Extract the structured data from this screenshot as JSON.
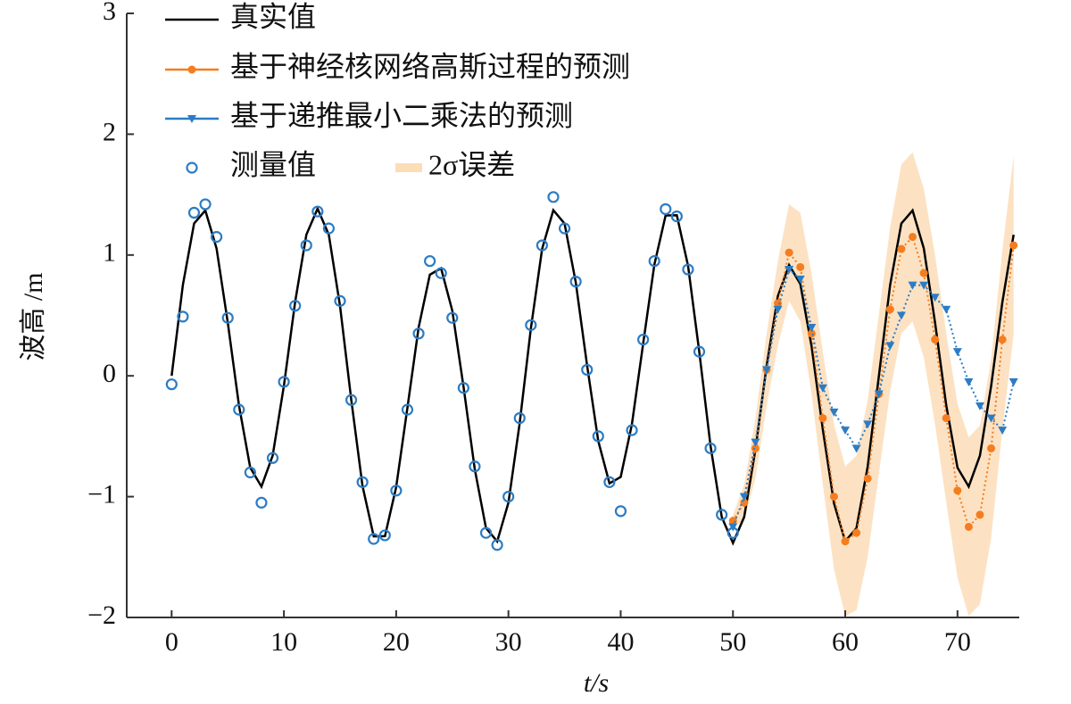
{
  "chart_data": {
    "type": "line",
    "xlabel": "t/s",
    "ylabel": "波高 /m",
    "xlim": [
      -4,
      75.5
    ],
    "ylim": [
      -2,
      3
    ],
    "xticks": [
      0,
      10,
      20,
      30,
      40,
      50,
      60,
      70
    ],
    "yticks": [
      {
        "value": -2,
        "label": "−2"
      },
      {
        "value": -1,
        "label": "−1"
      },
      0,
      1,
      2,
      3
    ],
    "series": [
      {
        "name": "真实值",
        "color": "#000000",
        "linestyle": "solid",
        "marker": "none",
        "x": [
          0,
          1,
          2,
          3,
          4,
          5,
          6,
          7,
          8,
          9,
          10,
          11,
          12,
          13,
          14,
          15,
          16,
          17,
          18,
          19,
          20,
          21,
          22,
          23,
          24,
          25,
          26,
          27,
          28,
          29,
          30,
          31,
          32,
          33,
          34,
          35,
          36,
          37,
          38,
          39,
          40,
          41,
          42,
          43,
          44,
          45,
          46,
          47,
          48,
          49,
          50,
          51,
          52,
          53,
          54,
          55,
          56,
          57,
          58,
          59,
          60,
          61,
          62,
          63,
          64,
          65,
          66,
          67,
          68,
          69,
          70,
          71,
          72,
          73,
          74,
          75
        ],
        "values": [
          0,
          0.752,
          1.261,
          1.369,
          1.055,
          0.441,
          -0.246,
          -0.76,
          -0.917,
          -0.66,
          -0.082,
          0.611,
          1.168,
          1.384,
          1.168,
          0.578,
          -0.198,
          -0.911,
          -1.329,
          -1.327,
          -0.921,
          -0.266,
          0.4,
          0.837,
          0.89,
          0.539,
          -0.09,
          -0.772,
          -1.26,
          -1.371,
          -1.05,
          -0.393,
          0.393,
          1.05,
          1.371,
          1.26,
          0.772,
          0.09,
          -0.539,
          -0.89,
          -0.837,
          -0.4,
          0.266,
          0.921,
          1.327,
          1.329,
          0.911,
          0.198,
          -0.578,
          -1.168,
          -1.384,
          -1.168,
          -0.611,
          0.082,
          0.66,
          0.917,
          0.76,
          0.246,
          -0.441,
          -1.055,
          -1.369,
          -1.261,
          -0.752,
          0,
          0.752,
          1.261,
          1.369,
          1.055,
          0.441,
          -0.246,
          -0.76,
          -0.917,
          -0.66,
          -0.082,
          0.611,
          1.168
        ]
      },
      {
        "name": "基于神经核网络高斯过程的预测",
        "color": "#f57d1f",
        "linestyle": "dotted",
        "marker": "dot",
        "x": [
          50,
          51,
          52,
          53,
          54,
          55,
          56,
          57,
          58,
          59,
          60,
          61,
          62,
          63,
          64,
          65,
          66,
          67,
          68,
          69,
          70,
          71,
          72,
          73,
          74,
          75
        ],
        "values": [
          -1.2,
          -1.05,
          -0.6,
          0.05,
          0.6,
          1.02,
          0.9,
          0.35,
          -0.35,
          -1.0,
          -1.37,
          -1.3,
          -0.85,
          -0.15,
          0.55,
          1.05,
          1.15,
          0.85,
          0.3,
          -0.35,
          -0.95,
          -1.25,
          -1.15,
          -0.6,
          0.3,
          1.08
        ]
      },
      {
        "name": "基于递推最小二乘法的预测",
        "color": "#2c7cc4",
        "linestyle": "dotted",
        "marker": "triangle-down",
        "x": [
          50,
          51,
          52,
          53,
          54,
          55,
          56,
          57,
          58,
          59,
          60,
          61,
          62,
          63,
          64,
          65,
          66,
          67,
          68,
          69,
          70,
          71,
          72,
          73,
          74,
          75
        ],
        "values": [
          -1.25,
          -1.0,
          -0.55,
          0.05,
          0.55,
          0.88,
          0.8,
          0.4,
          -0.1,
          -0.3,
          -0.45,
          -0.6,
          -0.4,
          -0.15,
          0.25,
          0.5,
          0.75,
          0.75,
          0.65,
          0.55,
          0.2,
          -0.05,
          -0.25,
          -0.35,
          -0.45,
          -0.05
        ]
      },
      {
        "name": "测量值",
        "color": "#2c7cc4",
        "linestyle": "none",
        "marker": "open-circle",
        "x": [
          0,
          1,
          2,
          3,
          4,
          5,
          6,
          7,
          8,
          9,
          10,
          11,
          12,
          13,
          14,
          15,
          16,
          17,
          18,
          19,
          20,
          21,
          22,
          23,
          24,
          25,
          26,
          27,
          28,
          29,
          30,
          31,
          32,
          33,
          34,
          35,
          36,
          37,
          38,
          39,
          40,
          41,
          42,
          43,
          44,
          45,
          46,
          47,
          48,
          49,
          50
        ],
        "values": [
          -0.07,
          0.49,
          1.35,
          1.42,
          1.15,
          0.48,
          -0.28,
          -0.8,
          -1.05,
          -0.68,
          -0.05,
          0.58,
          1.08,
          1.36,
          1.22,
          0.62,
          -0.2,
          -0.88,
          -1.35,
          -1.32,
          -0.95,
          -0.28,
          0.35,
          0.95,
          0.85,
          0.48,
          -0.1,
          -0.75,
          -1.3,
          -1.4,
          -1.0,
          -0.35,
          0.42,
          1.08,
          1.48,
          1.22,
          0.78,
          0.05,
          -0.5,
          -0.88,
          -1.12,
          -0.45,
          0.3,
          0.95,
          1.38,
          1.32,
          0.88,
          0.2,
          -0.6,
          -1.15,
          -1.3
        ]
      }
    ],
    "band": {
      "name": "2σ误差",
      "color": "#fbddb8",
      "x": [
        50,
        51,
        52,
        53,
        54,
        55,
        56,
        57,
        58,
        59,
        60,
        61,
        62,
        63,
        64,
        65,
        66,
        67,
        68,
        69,
        70,
        71,
        72,
        73,
        74,
        75
      ],
      "upper": [
        -1.15,
        -0.9,
        -0.35,
        0.35,
        0.95,
        1.42,
        1.35,
        0.85,
        0.2,
        -0.4,
        -0.75,
        -0.66,
        -0.2,
        0.51,
        1.23,
        1.75,
        1.85,
        1.55,
        1.0,
        0.35,
        -0.23,
        -0.51,
        -0.41,
        0.14,
        1.04,
        1.82
      ],
      "lower": [
        -1.25,
        -1.2,
        -0.85,
        -0.25,
        0.25,
        0.62,
        0.45,
        -0.15,
        -0.9,
        -1.6,
        -1.99,
        -1.94,
        -1.5,
        -0.81,
        -0.13,
        0.35,
        0.45,
        0.15,
        -0.4,
        -1.05,
        -1.67,
        -1.99,
        -1.89,
        -1.34,
        -0.44,
        0.34
      ]
    }
  }
}
